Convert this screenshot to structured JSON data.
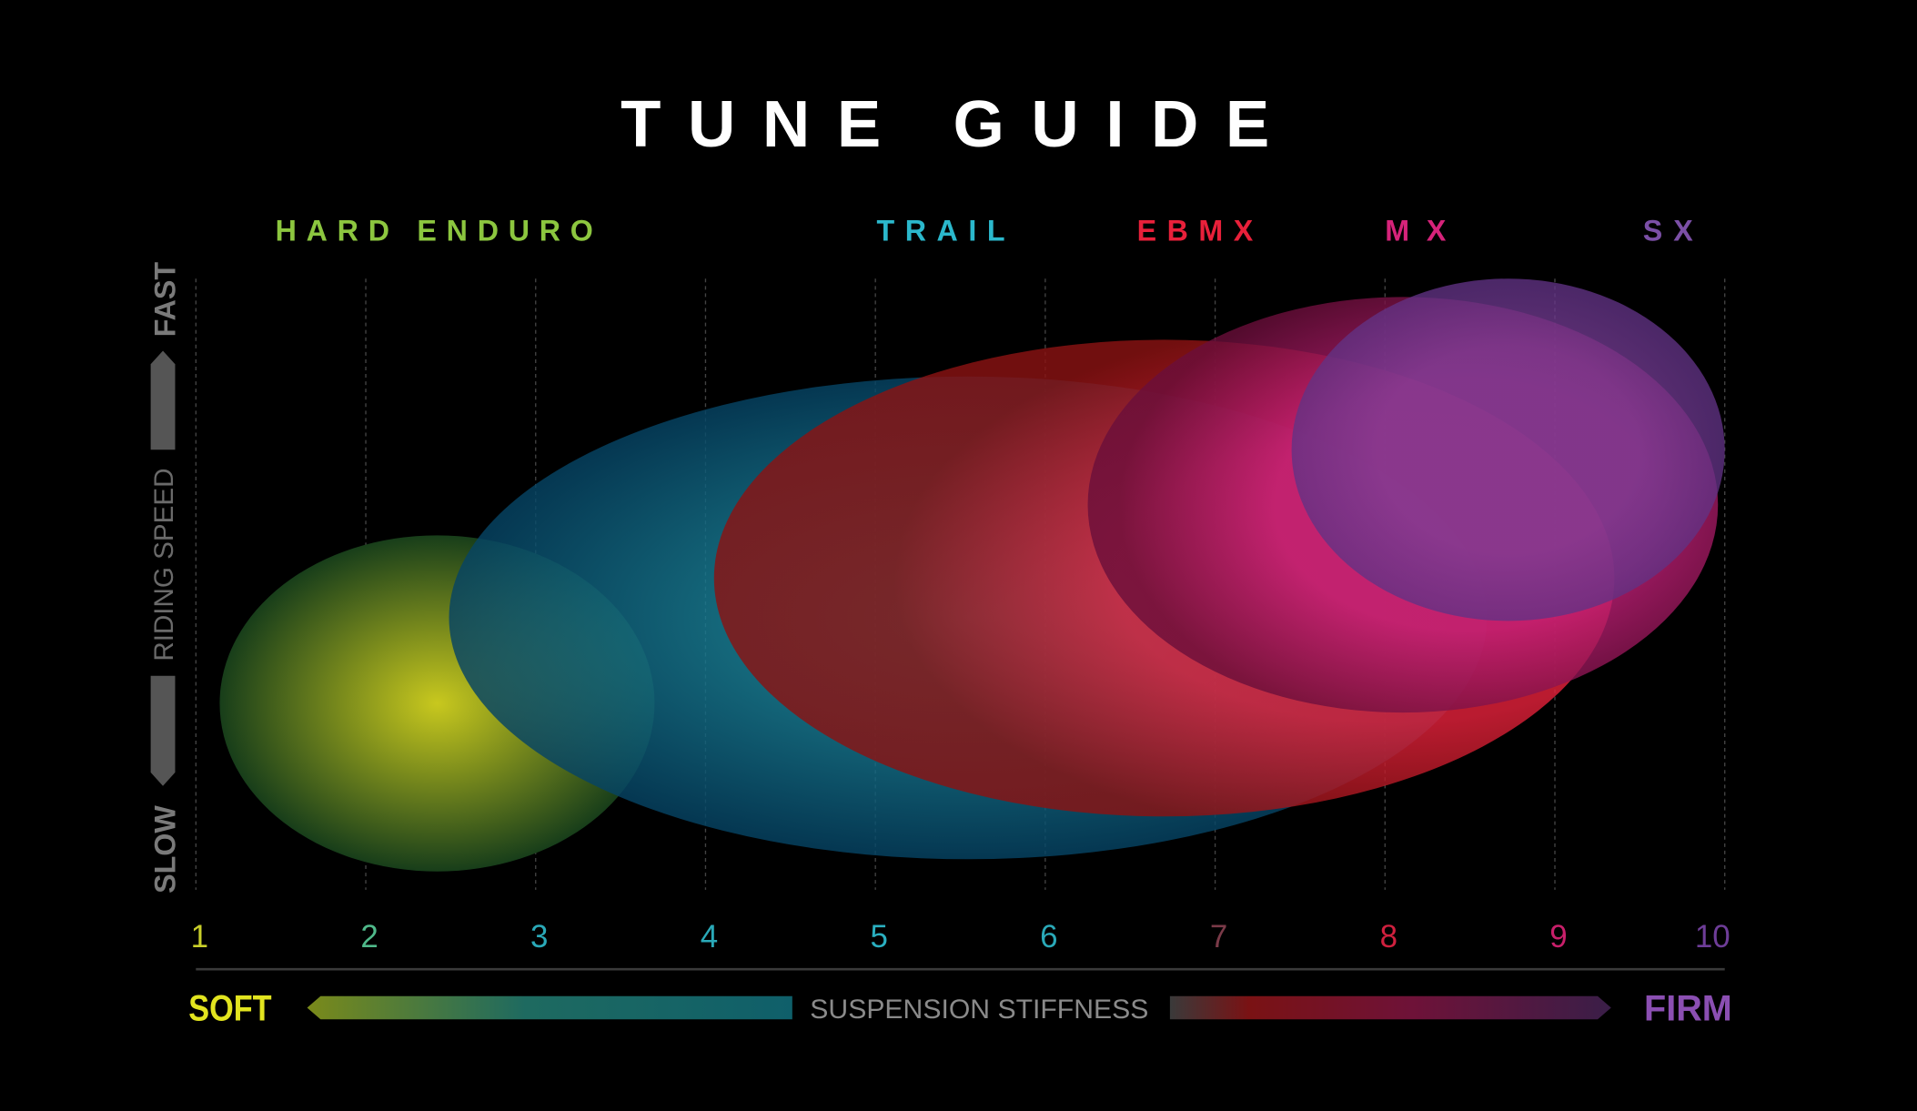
{
  "chart_data": {
    "type": "scatter",
    "title": "TUNE GUIDE",
    "xlabel": "SUSPENSION STIFFNESS",
    "x_low_label": "SOFT",
    "x_high_label": "FIRM",
    "ylabel": "RIDING SPEED",
    "y_low_label": "SLOW",
    "y_high_label": "FAST",
    "xlim": [
      1,
      10
    ],
    "ylim": [
      0,
      1
    ],
    "x_ticks": [
      "1",
      "2",
      "3",
      "4",
      "5",
      "6",
      "7",
      "8",
      "9",
      "10"
    ],
    "x_tick_colors": [
      "#c9cf2a",
      "#4fb98a",
      "#2aa9b8",
      "#2aa9b8",
      "#2aafc0",
      "#2aa9b8",
      "#7a3a48",
      "#d0203e",
      "#c81f6a",
      "#6e3d98"
    ],
    "grid": true,
    "series": [
      {
        "name": "HARD ENDURO",
        "color": "#8cc63f",
        "x_range": [
          1.14,
          3.7
        ],
        "y_range": [
          0.03,
          0.58
        ],
        "center_color": "#c8c81e",
        "edge_color": "#06301a"
      },
      {
        "name": "TRAIL",
        "color": "#2bb8cc",
        "x_range": [
          2.49,
          8.6
        ],
        "y_range": [
          0.05,
          0.84
        ],
        "center_color": "#2ab3c2",
        "edge_color": "#02385a"
      },
      {
        "name": "EBMX",
        "color": "#e8203a",
        "x_range": [
          4.05,
          9.35
        ],
        "y_range": [
          0.12,
          0.9
        ],
        "center_color": "#e3213b",
        "edge_color": "#8a1212"
      },
      {
        "name": "MX",
        "color": "#d6237a",
        "x_range": [
          6.25,
          9.96
        ],
        "y_range": [
          0.29,
          0.97
        ],
        "center_color": "#c4207a",
        "edge_color": "#6a0e3a"
      },
      {
        "name": "SX",
        "color": "#7b4fa6",
        "x_range": [
          7.45,
          10
        ],
        "y_range": [
          0.44,
          1.0
        ],
        "center_color": "#7a3e96",
        "edge_color": "#5a2f80"
      }
    ],
    "label_colors": {
      "soft": "#e2e41f",
      "firm": "#8b4fb2",
      "axis_text": "#8a8a8a",
      "speed_arrow": "#555555"
    }
  }
}
